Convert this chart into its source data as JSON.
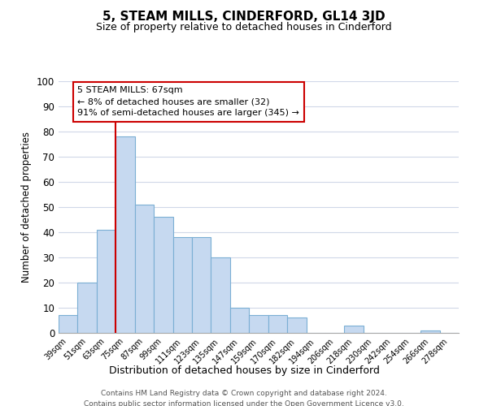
{
  "title": "5, STEAM MILLS, CINDERFORD, GL14 3JD",
  "subtitle": "Size of property relative to detached houses in Cinderford",
  "xlabel": "Distribution of detached houses by size in Cinderford",
  "ylabel": "Number of detached properties",
  "bin_labels": [
    "39sqm",
    "51sqm",
    "63sqm",
    "75sqm",
    "87sqm",
    "99sqm",
    "111sqm",
    "123sqm",
    "135sqm",
    "147sqm",
    "159sqm",
    "170sqm",
    "182sqm",
    "194sqm",
    "206sqm",
    "218sqm",
    "230sqm",
    "242sqm",
    "254sqm",
    "266sqm",
    "278sqm"
  ],
  "bar_heights": [
    7,
    20,
    41,
    78,
    51,
    46,
    38,
    38,
    30,
    10,
    7,
    7,
    6,
    0,
    0,
    3,
    0,
    0,
    0,
    1,
    0
  ],
  "bar_color": "#c6d9f0",
  "bar_edge_color": "#7bafd4",
  "vline_color": "#cc0000",
  "annotation_box_text": "5 STEAM MILLS: 67sqm\n← 8% of detached houses are smaller (32)\n91% of semi-detached houses are larger (345) →",
  "ylim": [
    0,
    100
  ],
  "yticks": [
    0,
    10,
    20,
    30,
    40,
    50,
    60,
    70,
    80,
    90,
    100
  ],
  "footer_line1": "Contains HM Land Registry data © Crown copyright and database right 2024.",
  "footer_line2": "Contains public sector information licensed under the Open Government Licence v3.0.",
  "background_color": "#ffffff",
  "grid_color": "#d0d8e8",
  "vline_bar_index": 2.5
}
